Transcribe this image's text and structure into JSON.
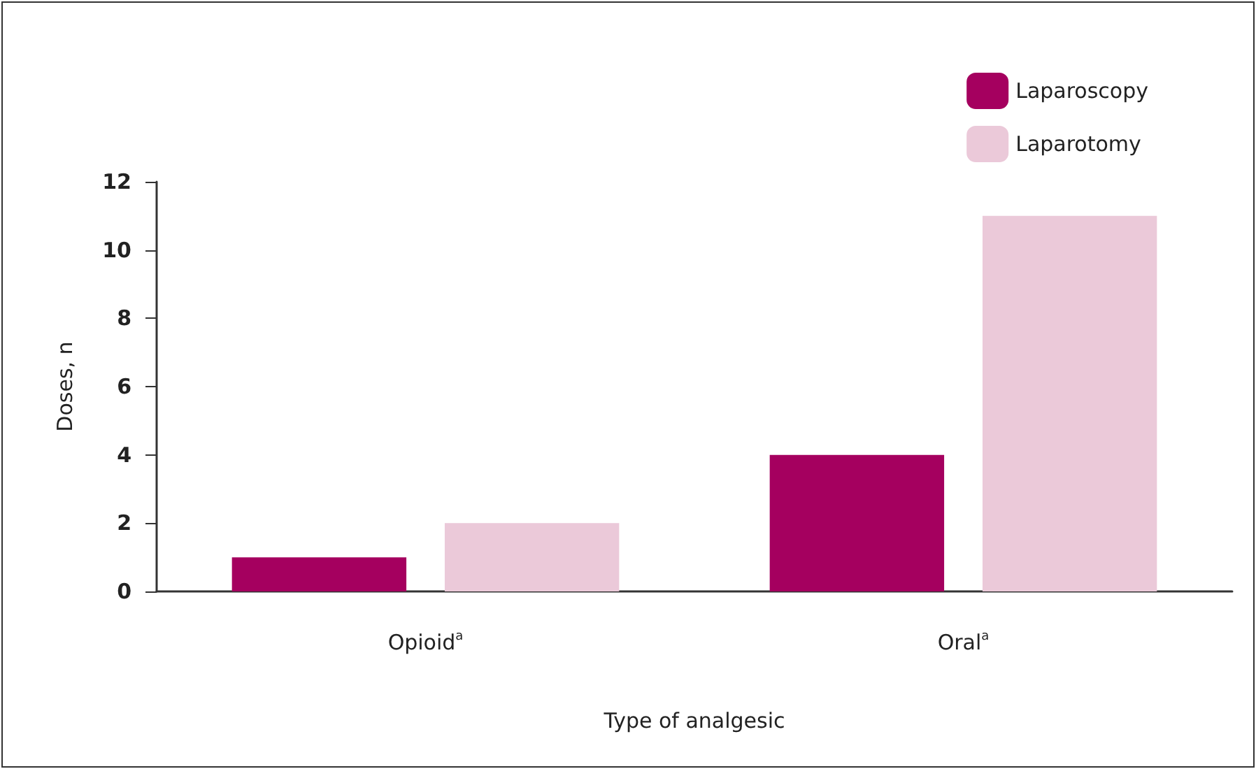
{
  "chart_data": {
    "type": "bar",
    "xlabel": "Type of analgesic",
    "ylabel": "Doses, n",
    "categories": [
      "Opioid$^{a}$",
      "Oral$^{a}$"
    ],
    "series": [
      {
        "name": "Laparoscopy",
        "color": "#a5005f",
        "values": [
          1,
          4
        ]
      },
      {
        "name": "Laparotomy",
        "color": "#ebc9d9",
        "values": [
          2,
          11
        ]
      }
    ],
    "ylim": [
      0,
      12
    ],
    "yticks": [
      0,
      2,
      4,
      6,
      8,
      10,
      12
    ],
    "grid": false,
    "legend": "top right"
  }
}
